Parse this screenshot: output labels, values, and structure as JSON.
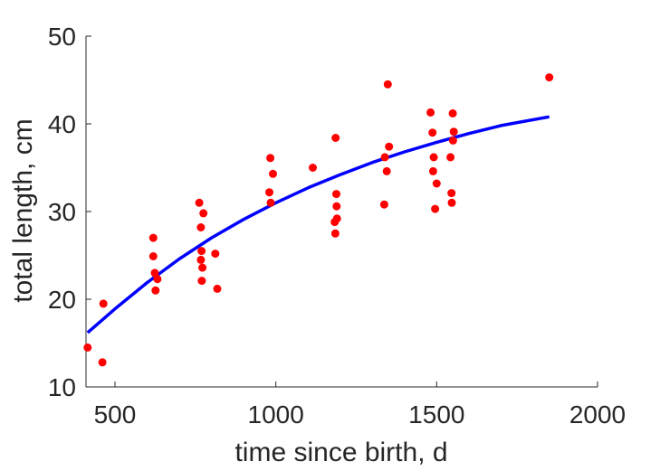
{
  "chart_data": {
    "type": "scatter",
    "xlabel": "time since birth, d",
    "ylabel": "total length, cm",
    "xlim": [
      410,
      2000
    ],
    "ylim": [
      10,
      50
    ],
    "xticks": [
      500,
      1000,
      1500,
      2000
    ],
    "yticks": [
      10,
      20,
      30,
      40,
      50
    ],
    "box": false,
    "grid": false,
    "series": [
      {
        "kind": "scatter",
        "color": "#ff0000",
        "points": [
          [
            415,
            14.5
          ],
          [
            461,
            12.8
          ],
          [
            464,
            19.5
          ],
          [
            619,
            27.0
          ],
          [
            619,
            24.9
          ],
          [
            624,
            23.0
          ],
          [
            626,
            21.0
          ],
          [
            632,
            22.3
          ],
          [
            762,
            31.0
          ],
          [
            767,
            28.2
          ],
          [
            767,
            24.5
          ],
          [
            769,
            25.5
          ],
          [
            770,
            22.1
          ],
          [
            772,
            23.6
          ],
          [
            775,
            29.8
          ],
          [
            812,
            25.2
          ],
          [
            818,
            21.2
          ],
          [
            980,
            32.2
          ],
          [
            983,
            36.1
          ],
          [
            984,
            31.0
          ],
          [
            991,
            34.3
          ],
          [
            1115,
            35.0
          ],
          [
            1183,
            28.8
          ],
          [
            1185,
            27.5
          ],
          [
            1186,
            38.4
          ],
          [
            1188,
            32.0
          ],
          [
            1189,
            30.6
          ],
          [
            1190,
            29.2
          ],
          [
            1337,
            30.8
          ],
          [
            1339,
            36.2
          ],
          [
            1345,
            34.6
          ],
          [
            1348,
            44.5
          ],
          [
            1352,
            37.4
          ],
          [
            1481,
            41.3
          ],
          [
            1487,
            39.0
          ],
          [
            1489,
            34.6
          ],
          [
            1491,
            36.2
          ],
          [
            1495,
            30.3
          ],
          [
            1500,
            33.2
          ],
          [
            1543,
            36.2
          ],
          [
            1546,
            32.1
          ],
          [
            1547,
            31.0
          ],
          [
            1550,
            41.2
          ],
          [
            1551,
            38.1
          ],
          [
            1553,
            39.1
          ],
          [
            1850,
            45.3
          ]
        ]
      },
      {
        "kind": "line",
        "color": "#0000ff",
        "points": [
          [
            415,
            16.2
          ],
          [
            500,
            18.9
          ],
          [
            600,
            21.9
          ],
          [
            700,
            24.6
          ],
          [
            800,
            27.0
          ],
          [
            900,
            29.1
          ],
          [
            1000,
            31.0
          ],
          [
            1100,
            32.7
          ],
          [
            1200,
            34.2
          ],
          [
            1300,
            35.6
          ],
          [
            1400,
            36.8
          ],
          [
            1500,
            37.9
          ],
          [
            1600,
            38.9
          ],
          [
            1700,
            39.8
          ],
          [
            1850,
            40.8
          ]
        ]
      }
    ]
  }
}
